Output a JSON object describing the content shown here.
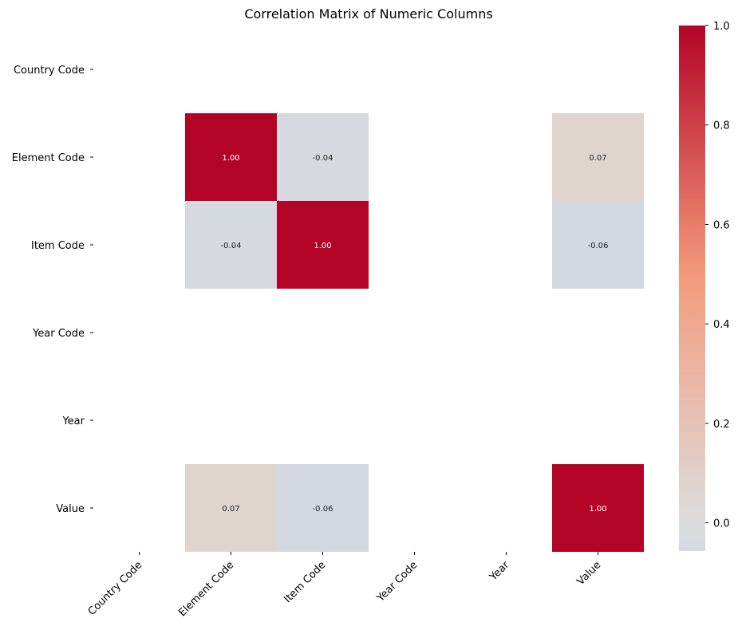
{
  "chart_data": {
    "type": "heatmap",
    "title": "Correlation Matrix of Numeric Columns",
    "x_labels": [
      "Country Code",
      "Element Code",
      "Item Code",
      "Year Code",
      "Year",
      "Value"
    ],
    "y_labels": [
      "Country Code",
      "Element Code",
      "Item Code",
      "Year Code",
      "Year",
      "Value"
    ],
    "matrix": [
      [
        null,
        null,
        null,
        null,
        null,
        null
      ],
      [
        null,
        1.0,
        -0.04,
        null,
        null,
        0.07
      ],
      [
        null,
        -0.04,
        1.0,
        null,
        null,
        -0.06
      ],
      [
        null,
        null,
        null,
        null,
        null,
        null
      ],
      [
        null,
        null,
        null,
        null,
        null,
        null
      ],
      [
        null,
        0.07,
        -0.06,
        null,
        null,
        1.0
      ]
    ],
    "annotation_format": "0.00",
    "colormap": "coolwarm",
    "colorbar": {
      "vmin": -0.0568,
      "vmax": 1.0,
      "center": 0,
      "ticks": [
        "0.0",
        "0.2",
        "0.4",
        "0.6",
        "0.8",
        "1.0"
      ],
      "tick_values": [
        0.0,
        0.2,
        0.4,
        0.6,
        0.8,
        1.0
      ]
    },
    "grid": false,
    "legend": "colorbar-right"
  }
}
